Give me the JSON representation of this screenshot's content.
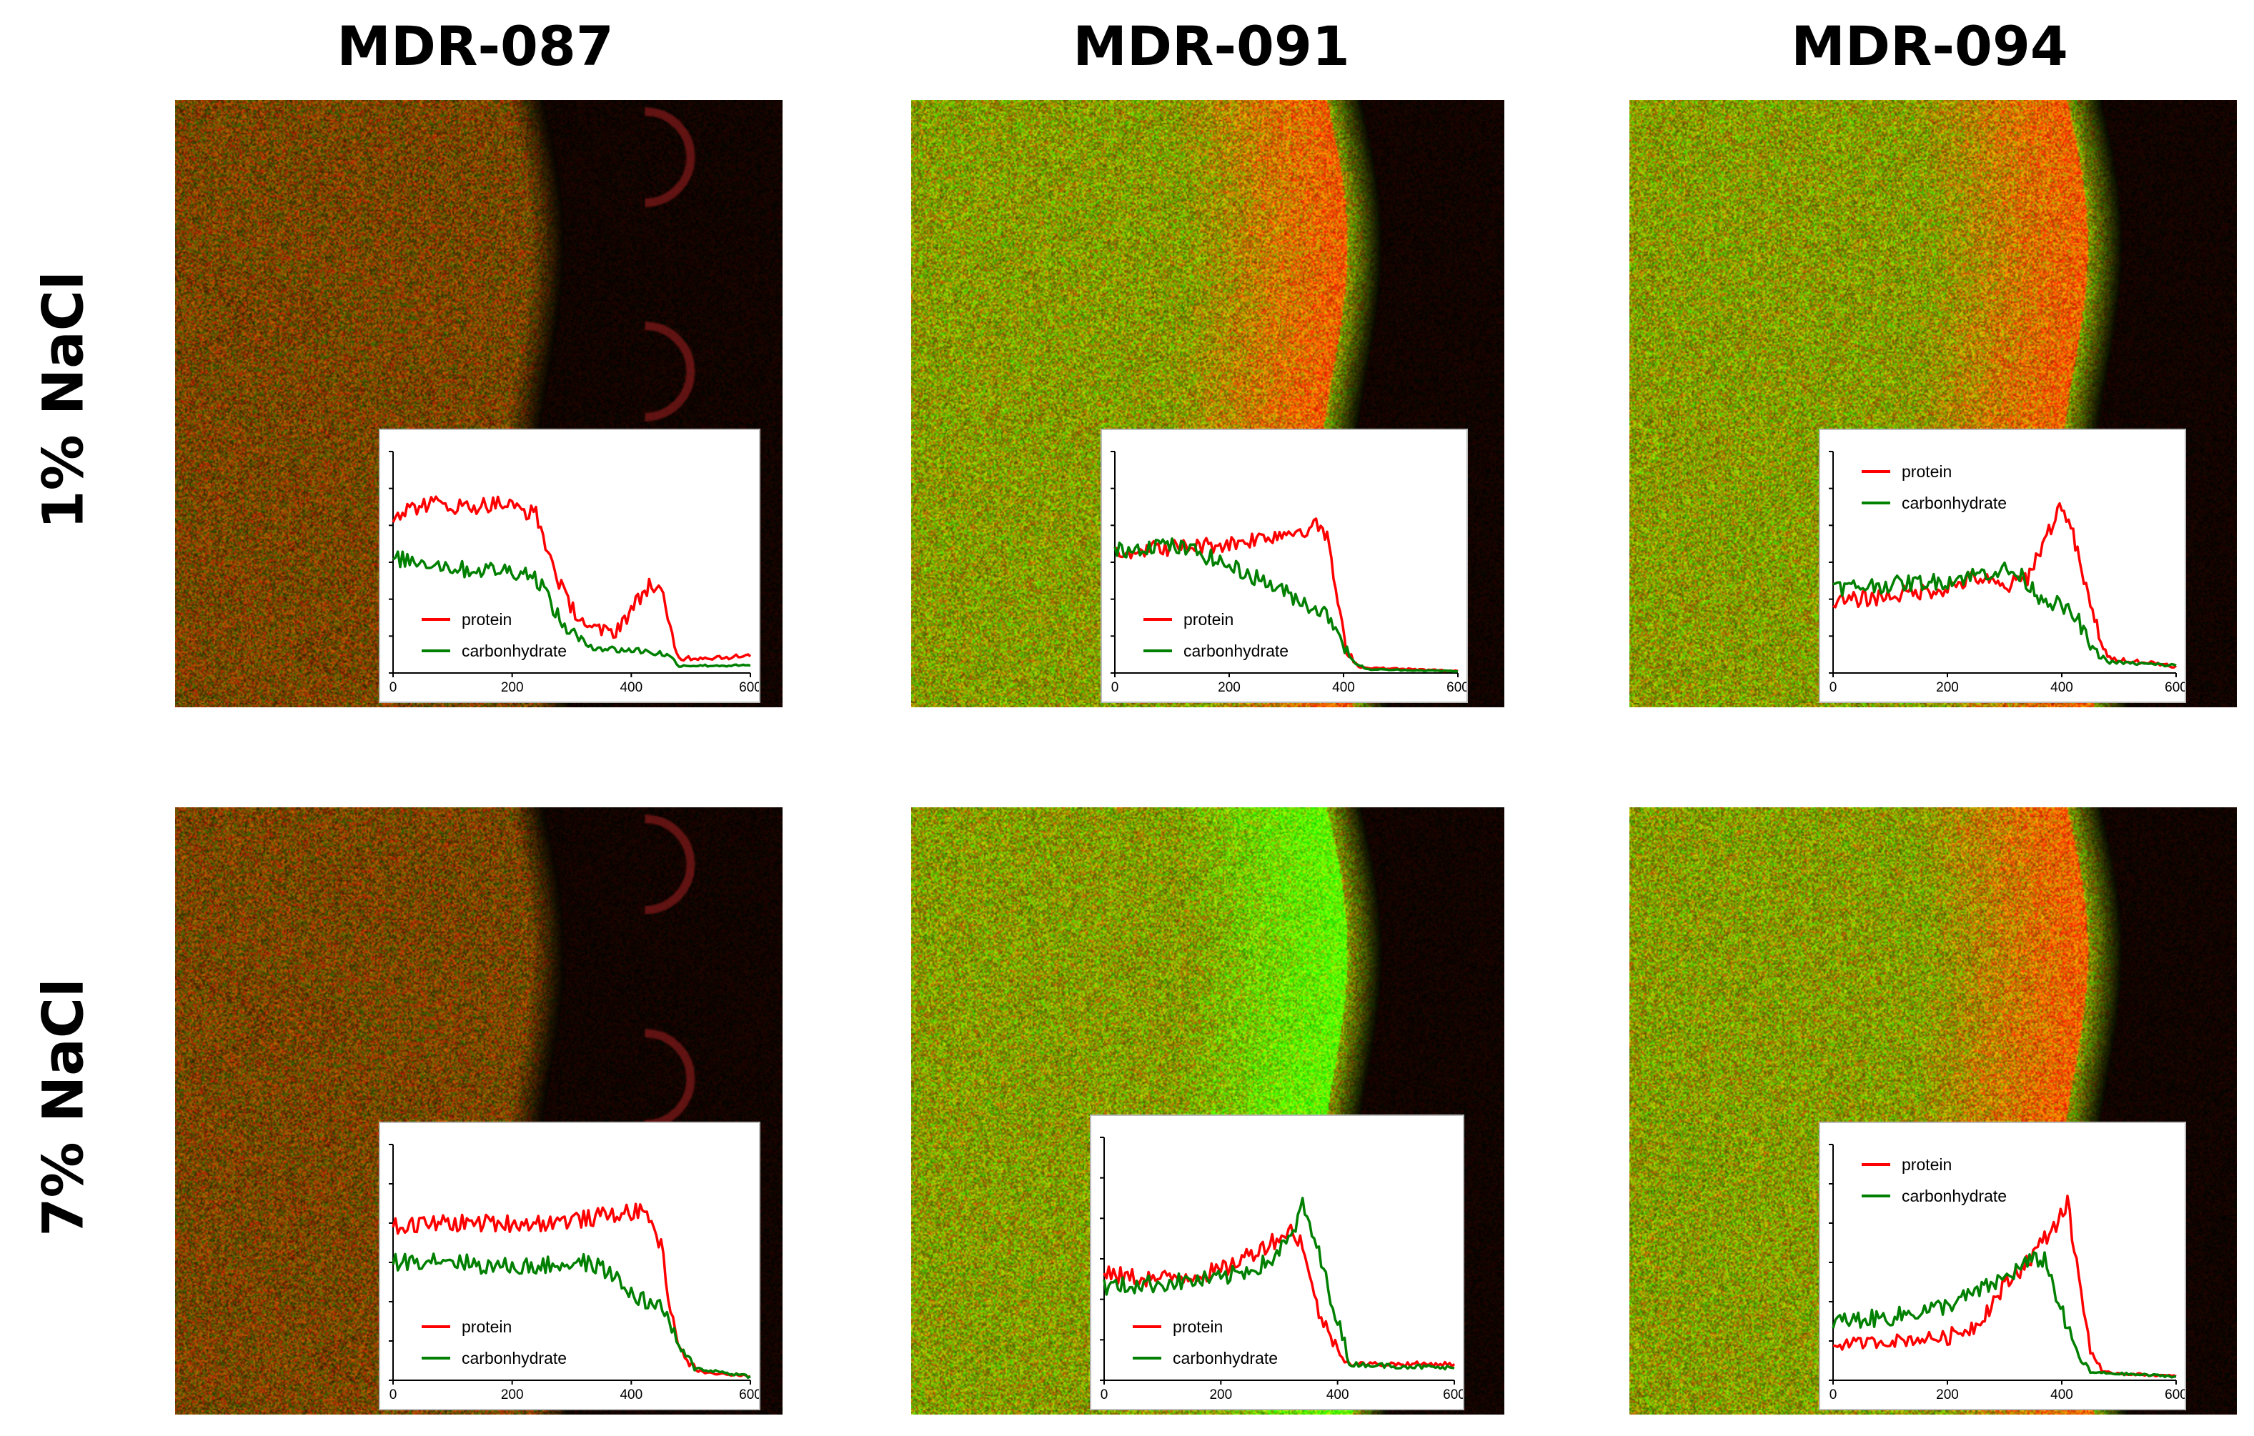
{
  "columns": [
    "MDR-087",
    "MDR-091",
    "MDR-094"
  ],
  "rows": [
    "1% NaCl",
    "7% NaCl"
  ],
  "colors": {
    "protein": "#ff0000",
    "carbonhydrate": "#008000"
  },
  "panels": [
    {
      "sample": "MDR-087",
      "condition": "1% NaCl",
      "image": {
        "edge": 0.55,
        "tint": "red",
        "bumps": true,
        "band": "none"
      },
      "chart_data": {
        "type": "line",
        "xlim": [
          0,
          600
        ],
        "ylim": [
          0,
          6
        ],
        "x_ticks": [
          "0",
          "200",
          "400",
          "600"
        ],
        "legend_position": "bottom-left",
        "series": [
          {
            "name": "protein",
            "color": "#ff0000",
            "points": [
              [
                0,
                4.3
              ],
              [
                60,
                4.6
              ],
              [
                120,
                4.5
              ],
              [
                180,
                4.6
              ],
              [
                240,
                4.3
              ],
              [
                260,
                3.3
              ],
              [
                290,
                2.0
              ],
              [
                330,
                1.2
              ],
              [
                370,
                1.1
              ],
              [
                400,
                1.7
              ],
              [
                430,
                2.4
              ],
              [
                450,
                2.2
              ],
              [
                465,
                1.2
              ],
              [
                480,
                0.4
              ],
              [
                600,
                0.45
              ]
            ]
          },
          {
            "name": "carbonhydrate",
            "color": "#008000",
            "points": [
              [
                0,
                3.1
              ],
              [
                60,
                3.0
              ],
              [
                120,
                2.8
              ],
              [
                180,
                2.8
              ],
              [
                230,
                2.7
              ],
              [
                250,
                2.4
              ],
              [
                280,
                1.4
              ],
              [
                320,
                0.8
              ],
              [
                360,
                0.65
              ],
              [
                420,
                0.6
              ],
              [
                460,
                0.5
              ],
              [
                480,
                0.2
              ],
              [
                600,
                0.2
              ]
            ]
          }
        ]
      }
    },
    {
      "sample": "MDR-091",
      "condition": "1% NaCl",
      "image": {
        "edge": 0.7,
        "tint": "yellow",
        "bumps": false,
        "band": "red"
      },
      "chart_data": {
        "type": "line",
        "xlim": [
          0,
          600
        ],
        "ylim": [
          0,
          6
        ],
        "x_ticks": [
          "0",
          "200",
          "400",
          "600"
        ],
        "legend_position": "bottom-left",
        "series": [
          {
            "name": "protein",
            "color": "#ff0000",
            "points": [
              [
                0,
                3.3
              ],
              [
                100,
                3.4
              ],
              [
                200,
                3.5
              ],
              [
                300,
                3.8
              ],
              [
                360,
                4.0
              ],
              [
                375,
                3.5
              ],
              [
                390,
                1.8
              ],
              [
                405,
                0.6
              ],
              [
                430,
                0.15
              ],
              [
                600,
                0.05
              ]
            ]
          },
          {
            "name": "carbonhydrate",
            "color": "#008000",
            "points": [
              [
                0,
                3.3
              ],
              [
                80,
                3.5
              ],
              [
                140,
                3.3
              ],
              [
                200,
                2.9
              ],
              [
                260,
                2.5
              ],
              [
                320,
                2.0
              ],
              [
                370,
                1.6
              ],
              [
                390,
                1.2
              ],
              [
                410,
                0.4
              ],
              [
                440,
                0.1
              ],
              [
                600,
                0.05
              ]
            ]
          }
        ]
      }
    },
    {
      "sample": "MDR-094",
      "condition": "1% NaCl",
      "image": {
        "edge": 0.72,
        "tint": "yellow",
        "bumps": false,
        "band": "red"
      },
      "chart_data": {
        "type": "line",
        "xlim": [
          0,
          600
        ],
        "ylim": [
          0,
          6
        ],
        "x_ticks": [
          "0",
          "200",
          "400",
          "600"
        ],
        "legend_position": "top-left",
        "series": [
          {
            "name": "protein",
            "color": "#ff0000",
            "points": [
              [
                0,
                1.9
              ],
              [
                100,
                2.1
              ],
              [
                200,
                2.3
              ],
              [
                250,
                2.6
              ],
              [
                300,
                2.3
              ],
              [
                340,
                2.6
              ],
              [
                370,
                3.6
              ],
              [
                400,
                4.6
              ],
              [
                420,
                3.7
              ],
              [
                450,
                1.8
              ],
              [
                480,
                0.4
              ],
              [
                600,
                0.2
              ]
            ]
          },
          {
            "name": "carbonhydrate",
            "color": "#008000",
            "points": [
              [
                0,
                2.3
              ],
              [
                100,
                2.4
              ],
              [
                200,
                2.5
              ],
              [
                260,
                2.7
              ],
              [
                300,
                2.8
              ],
              [
                330,
                2.6
              ],
              [
                360,
                2.1
              ],
              [
                400,
                1.8
              ],
              [
                430,
                1.4
              ],
              [
                450,
                0.7
              ],
              [
                480,
                0.3
              ],
              [
                600,
                0.2
              ]
            ]
          }
        ]
      }
    },
    {
      "sample": "MDR-087",
      "condition": "7% NaCl",
      "image": {
        "edge": 0.55,
        "tint": "red",
        "bumps": true,
        "band": "none"
      },
      "chart_data": {
        "type": "line",
        "xlim": [
          0,
          600
        ],
        "ylim": [
          0,
          6
        ],
        "x_ticks": [
          "0",
          "200",
          "400",
          "600"
        ],
        "legend_position": "bottom-left",
        "series": [
          {
            "name": "protein",
            "color": "#ff0000",
            "points": [
              [
                0,
                3.9
              ],
              [
                80,
                4.0
              ],
              [
                160,
                4.0
              ],
              [
                240,
                4.0
              ],
              [
                320,
                4.1
              ],
              [
                400,
                4.3
              ],
              [
                430,
                4.2
              ],
              [
                450,
                3.4
              ],
              [
                470,
                1.5
              ],
              [
                490,
                0.5
              ],
              [
                520,
                0.2
              ],
              [
                600,
                0.1
              ]
            ]
          },
          {
            "name": "carbonhydrate",
            "color": "#008000",
            "points": [
              [
                0,
                3.0
              ],
              [
                80,
                3.1
              ],
              [
                160,
                2.9
              ],
              [
                240,
                2.9
              ],
              [
                320,
                3.0
              ],
              [
                360,
                2.8
              ],
              [
                400,
                2.2
              ],
              [
                440,
                1.9
              ],
              [
                460,
                1.7
              ],
              [
                480,
                0.8
              ],
              [
                510,
                0.3
              ],
              [
                600,
                0.1
              ]
            ]
          }
        ]
      }
    },
    {
      "sample": "MDR-091",
      "condition": "7% NaCl",
      "image": {
        "edge": 0.7,
        "tint": "yellow",
        "bumps": false,
        "band": "green"
      },
      "chart_data": {
        "type": "line",
        "xlim": [
          0,
          600
        ],
        "ylim": [
          0,
          6
        ],
        "x_ticks": [
          "0",
          "200",
          "400",
          "600"
        ],
        "legend_position": "bottom-left",
        "series": [
          {
            "name": "protein",
            "color": "#ff0000",
            "points": [
              [
                0,
                2.6
              ],
              [
                100,
                2.5
              ],
              [
                200,
                2.7
              ],
              [
                260,
                3.2
              ],
              [
                320,
                3.7
              ],
              [
                340,
                3.4
              ],
              [
                360,
                2.0
              ],
              [
                380,
                1.3
              ],
              [
                400,
                0.8
              ],
              [
                420,
                0.4
              ],
              [
                600,
                0.4
              ]
            ]
          },
          {
            "name": "carbonhydrate",
            "color": "#008000",
            "points": [
              [
                0,
                2.3
              ],
              [
                100,
                2.4
              ],
              [
                200,
                2.5
              ],
              [
                280,
                2.9
              ],
              [
                320,
                3.5
              ],
              [
                340,
                4.3
              ],
              [
                360,
                3.5
              ],
              [
                380,
                2.5
              ],
              [
                400,
                1.5
              ],
              [
                420,
                0.4
              ],
              [
                600,
                0.3
              ]
            ]
          }
        ]
      }
    },
    {
      "sample": "MDR-094",
      "condition": "7% NaCl",
      "image": {
        "edge": 0.72,
        "tint": "yellow",
        "bumps": false,
        "band": "red"
      },
      "chart_data": {
        "type": "line",
        "xlim": [
          0,
          600
        ],
        "ylim": [
          0,
          6
        ],
        "x_ticks": [
          "0",
          "200",
          "400",
          "600"
        ],
        "legend_position": "top-left",
        "series": [
          {
            "name": "protein",
            "color": "#ff0000",
            "points": [
              [
                0,
                0.9
              ],
              [
                100,
                1.0
              ],
              [
                200,
                1.1
              ],
              [
                250,
                1.4
              ],
              [
                300,
                2.4
              ],
              [
                350,
                3.2
              ],
              [
                390,
                4.0
              ],
              [
                410,
                4.5
              ],
              [
                430,
                2.6
              ],
              [
                450,
                0.8
              ],
              [
                470,
                0.2
              ],
              [
                600,
                0.1
              ]
            ]
          },
          {
            "name": "carbonhydrate",
            "color": "#008000",
            "points": [
              [
                0,
                1.5
              ],
              [
                100,
                1.6
              ],
              [
                200,
                1.9
              ],
              [
                260,
                2.3
              ],
              [
                300,
                2.6
              ],
              [
                340,
                3.0
              ],
              [
                370,
                3.1
              ],
              [
                390,
                2.2
              ],
              [
                410,
                1.3
              ],
              [
                430,
                0.6
              ],
              [
                450,
                0.2
              ],
              [
                600,
                0.1
              ]
            ]
          }
        ]
      }
    }
  ]
}
